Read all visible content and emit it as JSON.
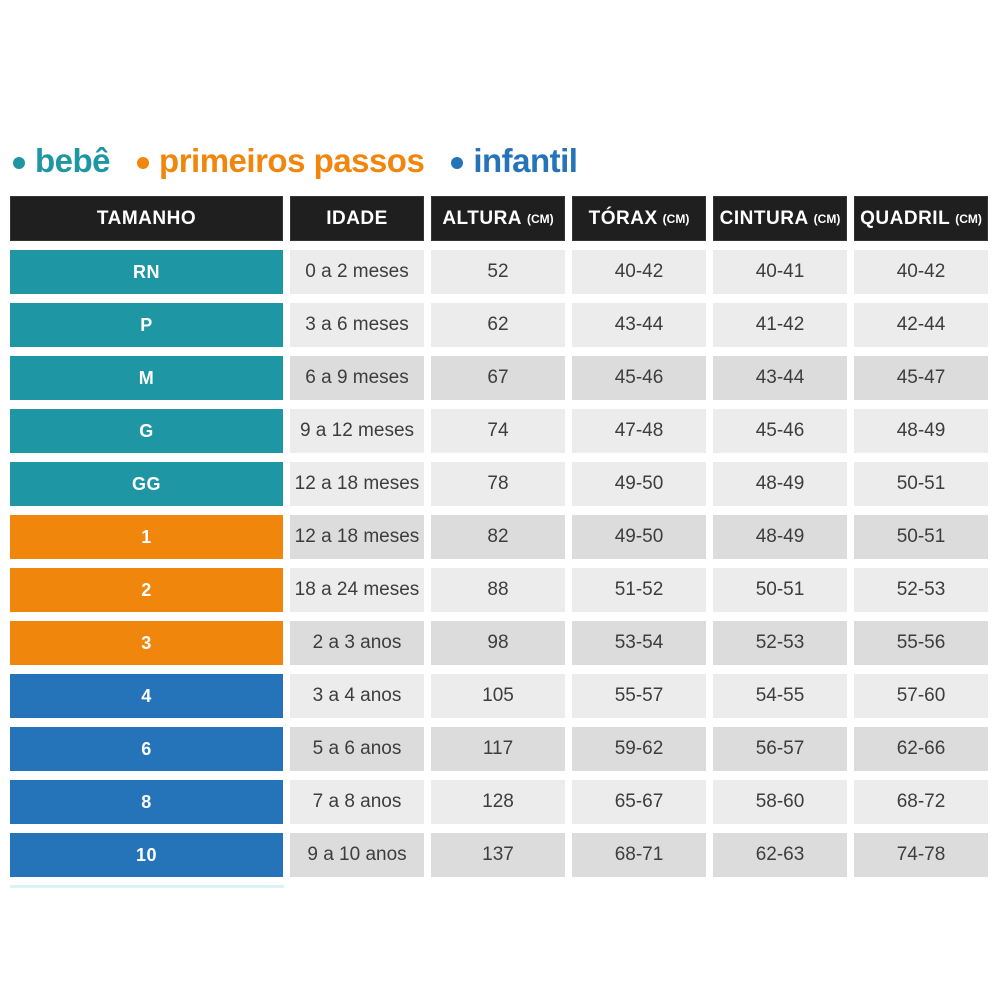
{
  "colors": {
    "bebe": "#1f96a3",
    "primeiros_passos": "#f1860d",
    "infantil": "#2574b9",
    "header_bg": "#1f1f1f",
    "row_light": "#ececec",
    "row_dark": "#dcdcdc"
  },
  "legend": {
    "items": [
      {
        "label": "bebê",
        "group": "bebe"
      },
      {
        "label": "primeiros passos",
        "group": "primeiros_passos"
      },
      {
        "label": "infantil",
        "group": "infantil"
      }
    ]
  },
  "chart_data": {
    "type": "table",
    "title": "",
    "columns": [
      {
        "label": "TAMANHO",
        "unit": ""
      },
      {
        "label": "IDADE",
        "unit": ""
      },
      {
        "label": "ALTURA",
        "unit": "(CM)"
      },
      {
        "label": "TÓRAX",
        "unit": "(CM)"
      },
      {
        "label": "CINTURA",
        "unit": "(CM)"
      },
      {
        "label": "QUADRIL",
        "unit": "(CM)"
      }
    ],
    "rows": [
      {
        "size": "RN",
        "group": "bebe",
        "shade": "light",
        "idade": "0 a 2 meses",
        "altura": "52",
        "torax": "40-42",
        "cintura": "40-41",
        "quadril": "40-42"
      },
      {
        "size": "P",
        "group": "bebe",
        "shade": "light",
        "idade": "3 a 6 meses",
        "altura": "62",
        "torax": "43-44",
        "cintura": "41-42",
        "quadril": "42-44"
      },
      {
        "size": "M",
        "group": "bebe",
        "shade": "dark",
        "idade": "6 a 9 meses",
        "altura": "67",
        "torax": "45-46",
        "cintura": "43-44",
        "quadril": "45-47"
      },
      {
        "size": "G",
        "group": "bebe",
        "shade": "light",
        "idade": "9 a 12 meses",
        "altura": "74",
        "torax": "47-48",
        "cintura": "45-46",
        "quadril": "48-49"
      },
      {
        "size": "GG",
        "group": "bebe",
        "shade": "light",
        "idade": "12 a 18 meses",
        "altura": "78",
        "torax": "49-50",
        "cintura": "48-49",
        "quadril": "50-51"
      },
      {
        "size": "1",
        "group": "primeiros_passos",
        "shade": "dark",
        "idade": "12 a 18 meses",
        "altura": "82",
        "torax": "49-50",
        "cintura": "48-49",
        "quadril": "50-51"
      },
      {
        "size": "2",
        "group": "primeiros_passos",
        "shade": "light",
        "idade": "18 a 24 meses",
        "altura": "88",
        "torax": "51-52",
        "cintura": "50-51",
        "quadril": "52-53"
      },
      {
        "size": "3",
        "group": "primeiros_passos",
        "shade": "dark",
        "idade": "2 a 3 anos",
        "altura": "98",
        "torax": "53-54",
        "cintura": "52-53",
        "quadril": "55-56"
      },
      {
        "size": "4",
        "group": "infantil",
        "shade": "light",
        "idade": "3 a 4 anos",
        "altura": "105",
        "torax": "55-57",
        "cintura": "54-55",
        "quadril": "57-60"
      },
      {
        "size": "6",
        "group": "infantil",
        "shade": "dark",
        "idade": "5 a 6 anos",
        "altura": "117",
        "torax": "59-62",
        "cintura": "56-57",
        "quadril": "62-66"
      },
      {
        "size": "8",
        "group": "infantil",
        "shade": "light",
        "idade": "7 a 8 anos",
        "altura": "128",
        "torax": "65-67",
        "cintura": "58-60",
        "quadril": "68-72"
      },
      {
        "size": "10",
        "group": "infantil",
        "shade": "dark",
        "idade": "9 a 10 anos",
        "altura": "137",
        "torax": "68-71",
        "cintura": "62-63",
        "quadril": "74-78"
      }
    ]
  }
}
